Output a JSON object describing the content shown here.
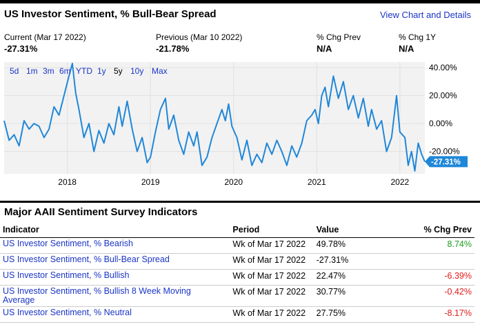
{
  "header": {
    "title": "US Investor Sentiment, % Bull-Bear Spread",
    "view_link": "View Chart and Details"
  },
  "stats": [
    {
      "label": "Current (Mar 17 2022)",
      "value": "-27.31%"
    },
    {
      "label": "Previous (Mar 10 2022)",
      "value": "-21.78%"
    },
    {
      "label": "% Chg Prev",
      "value": "N/A"
    },
    {
      "label": "% Chg 1Y",
      "value": "N/A"
    }
  ],
  "ranges": [
    "5d",
    "1m",
    "3m",
    "6m",
    "YTD",
    "1y",
    "5y",
    "10y",
    "Max"
  ],
  "selected_range": "5y",
  "colors": {
    "line": "#1f87d8",
    "link": "#1a35c6",
    "positive": "#1e9e1e",
    "negative": "#e21b1b",
    "plot_bg": "#f2f2f2"
  },
  "chart_data": {
    "type": "line",
    "title": "US Investor Sentiment, % Bull-Bear Spread",
    "xlabel": "",
    "ylabel": "",
    "x_ticks": [
      {
        "label": "2018",
        "year": 2018.0
      },
      {
        "label": "2019",
        "year": 2019.0
      },
      {
        "label": "2020",
        "year": 2020.0
      },
      {
        "label": "2021",
        "year": 2021.0
      },
      {
        "label": "2022",
        "year": 2022.0
      }
    ],
    "y_ticks": [
      {
        "label": "40.00%",
        "value": 40
      },
      {
        "label": "20.00%",
        "value": 20
      },
      {
        "label": "0.00%",
        "value": 0
      },
      {
        "label": "-20.00%",
        "value": -20
      }
    ],
    "ylim": [
      -36,
      44
    ],
    "xlim": [
      2017.24,
      2022.3
    ],
    "last_label": "-27.31%",
    "last_value": -27.31,
    "series": [
      {
        "name": "Bull-Bear Spread",
        "points": [
          [
            2017.24,
            2
          ],
          [
            2017.3,
            -12
          ],
          [
            2017.36,
            -8
          ],
          [
            2017.42,
            -16
          ],
          [
            2017.48,
            2
          ],
          [
            2017.54,
            -4
          ],
          [
            2017.6,
            0
          ],
          [
            2017.66,
            -2
          ],
          [
            2017.72,
            -10
          ],
          [
            2017.78,
            -4
          ],
          [
            2017.84,
            12
          ],
          [
            2017.9,
            6
          ],
          [
            2017.96,
            20
          ],
          [
            2018.02,
            34
          ],
          [
            2018.06,
            43
          ],
          [
            2018.1,
            22
          ],
          [
            2018.14,
            10
          ],
          [
            2018.2,
            -10
          ],
          [
            2018.26,
            0
          ],
          [
            2018.32,
            -20
          ],
          [
            2018.38,
            -5
          ],
          [
            2018.44,
            -14
          ],
          [
            2018.5,
            0
          ],
          [
            2018.56,
            -8
          ],
          [
            2018.62,
            12
          ],
          [
            2018.66,
            -2
          ],
          [
            2018.72,
            16
          ],
          [
            2018.78,
            -4
          ],
          [
            2018.84,
            -20
          ],
          [
            2018.9,
            -10
          ],
          [
            2018.96,
            -28
          ],
          [
            2019.0,
            -24
          ],
          [
            2019.06,
            -6
          ],
          [
            2019.12,
            10
          ],
          [
            2019.18,
            18
          ],
          [
            2019.22,
            -4
          ],
          [
            2019.28,
            6
          ],
          [
            2019.34,
            -12
          ],
          [
            2019.4,
            -22
          ],
          [
            2019.46,
            -6
          ],
          [
            2019.52,
            -16
          ],
          [
            2019.56,
            -6
          ],
          [
            2019.62,
            -30
          ],
          [
            2019.68,
            -24
          ],
          [
            2019.74,
            -10
          ],
          [
            2019.8,
            0
          ],
          [
            2019.86,
            10
          ],
          [
            2019.9,
            2
          ],
          [
            2019.94,
            14
          ],
          [
            2019.98,
            -2
          ],
          [
            2020.04,
            -10
          ],
          [
            2020.1,
            -26
          ],
          [
            2020.16,
            -12
          ],
          [
            2020.22,
            -30
          ],
          [
            2020.28,
            -22
          ],
          [
            2020.34,
            -28
          ],
          [
            2020.4,
            -14
          ],
          [
            2020.46,
            -22
          ],
          [
            2020.52,
            -12
          ],
          [
            2020.58,
            -20
          ],
          [
            2020.64,
            -30
          ],
          [
            2020.7,
            -16
          ],
          [
            2020.76,
            -24
          ],
          [
            2020.82,
            -14
          ],
          [
            2020.88,
            2
          ],
          [
            2020.94,
            6
          ],
          [
            2020.98,
            10
          ],
          [
            2021.02,
            0
          ],
          [
            2021.06,
            20
          ],
          [
            2021.1,
            26
          ],
          [
            2021.14,
            12
          ],
          [
            2021.2,
            34
          ],
          [
            2021.26,
            18
          ],
          [
            2021.32,
            30
          ],
          [
            2021.38,
            10
          ],
          [
            2021.44,
            20
          ],
          [
            2021.5,
            4
          ],
          [
            2021.56,
            18
          ],
          [
            2021.62,
            -2
          ],
          [
            2021.66,
            10
          ],
          [
            2021.72,
            -4
          ],
          [
            2021.78,
            2
          ],
          [
            2021.84,
            -20
          ],
          [
            2021.9,
            -10
          ],
          [
            2021.96,
            20
          ],
          [
            2022.0,
            -6
          ],
          [
            2022.06,
            -10
          ],
          [
            2022.1,
            -30
          ],
          [
            2022.14,
            -20
          ],
          [
            2022.18,
            -34
          ],
          [
            2022.22,
            -14
          ],
          [
            2022.26,
            -21.78
          ],
          [
            2022.3,
            -27.31
          ]
        ]
      }
    ]
  },
  "indicators": {
    "section_title": "Major AAII Sentiment Survey Indicators",
    "columns": [
      "Indicator",
      "Period",
      "Value",
      "% Chg Prev"
    ],
    "rows": [
      {
        "name": "US Investor Sentiment, % Bearish",
        "period": "Wk of Mar 17 2022",
        "value": "49.78%",
        "chg": "8.74%",
        "dir": "pos"
      },
      {
        "name": "US Investor Sentiment, % Bull-Bear Spread",
        "period": "Wk of Mar 17 2022",
        "value": "-27.31%",
        "chg": "",
        "dir": ""
      },
      {
        "name": "US Investor Sentiment, % Bullish",
        "period": "Wk of Mar 17 2022",
        "value": "22.47%",
        "chg": "-6.39%",
        "dir": "neg"
      },
      {
        "name": "US Investor Sentiment, % Bullish 8 Week Moving Average",
        "period": "Wk of Mar 17 2022",
        "value": "30.77%",
        "chg": "-0.42%",
        "dir": "neg"
      },
      {
        "name": "US Investor Sentiment, % Neutral",
        "period": "Wk of Mar 17 2022",
        "value": "27.75%",
        "chg": "-8.17%",
        "dir": "neg"
      }
    ]
  }
}
